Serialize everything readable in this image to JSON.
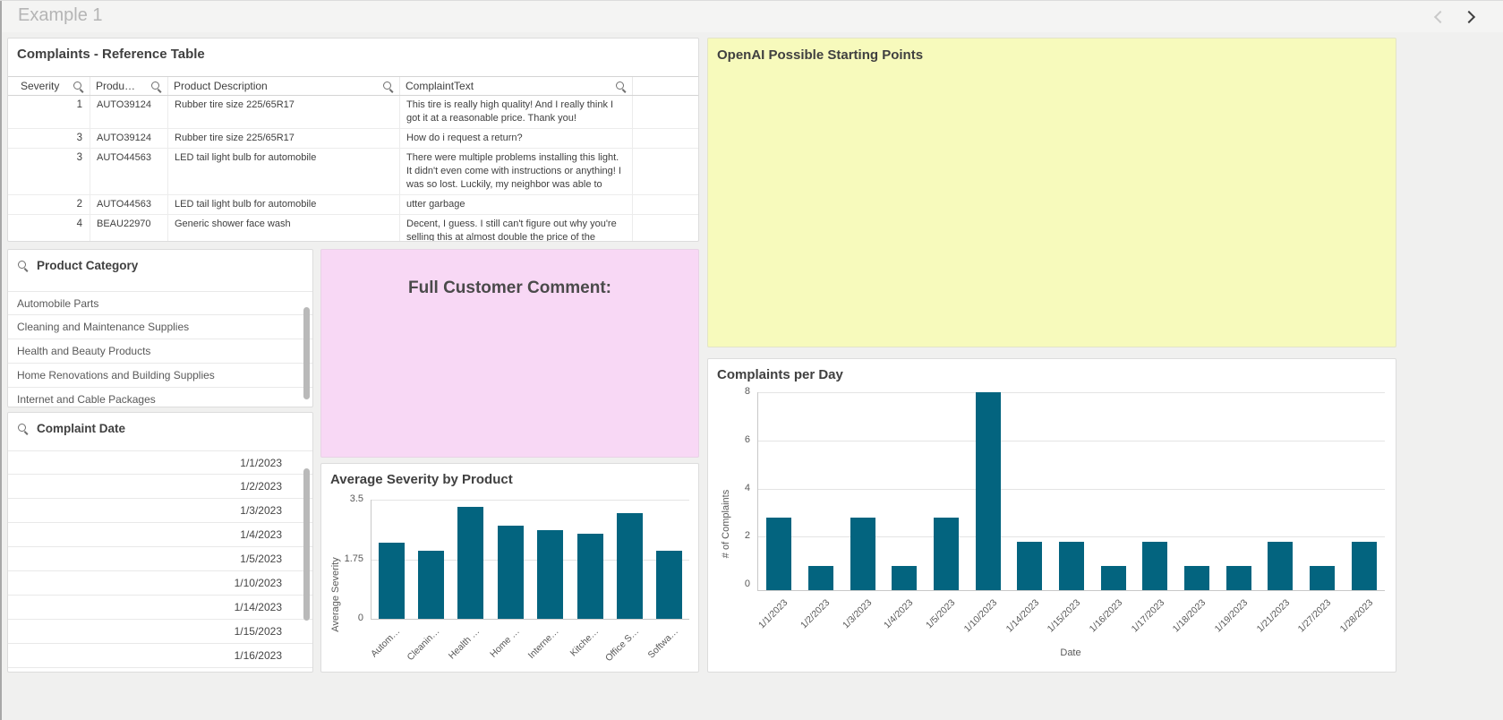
{
  "topbar": {
    "title": "Example 1"
  },
  "icons": {
    "search": "magnifier",
    "nav_prev": "chevron-left",
    "nav_next": "chevron-right"
  },
  "reference_table": {
    "title": "Complaints - Reference Table",
    "columns": [
      "Severity",
      "Produ…",
      "Product Description",
      "ComplaintText"
    ],
    "rows": [
      [
        "1",
        "AUTO39124",
        "Rubber tire size 225/65R17",
        "This tire is really high quality! And I really think I got it at a reasonable price. Thank you!"
      ],
      [
        "3",
        "AUTO39124",
        "Rubber tire size 225/65R17",
        "How do i request a return?"
      ],
      [
        "3",
        "AUTO44563",
        "LED tail light bulb for automobile",
        "There were multiple problems installing this light. It didn't even come with instructions or anything! I was so lost. Luckily, my neighbor was able to"
      ],
      [
        "2",
        "AUTO44563",
        "LED tail light bulb for automobile",
        "utter garbage"
      ],
      [
        "4",
        "BEAU22970",
        "Generic shower face wash",
        "Decent, I guess. I still can't figure out why you're selling this at almost double the price of the"
      ]
    ]
  },
  "filters": {
    "product_category": {
      "title": "Product Category",
      "items": [
        "Automobile Parts",
        "Cleaning and Maintenance Supplies",
        "Health and Beauty Products",
        "Home Renovations and Building Supplies",
        "Internet and Cable Packages"
      ]
    },
    "complaint_date": {
      "title": "Complaint Date",
      "items": [
        "1/1/2023",
        "1/2/2023",
        "1/3/2023",
        "1/4/2023",
        "1/5/2023",
        "1/10/2023",
        "1/14/2023",
        "1/15/2023",
        "1/16/2023"
      ]
    }
  },
  "panels": {
    "openai": {
      "title": "OpenAI Possible Starting Points",
      "bg_color": "#f7fabc"
    },
    "full_comment": {
      "title": "Full Customer Comment:",
      "bg_color": "#f8d8f5"
    }
  },
  "chart_data": [
    {
      "type": "bar",
      "title": "Average Severity by Product",
      "categories": [
        "Autom…",
        "Cleanin…",
        "Health …",
        "Home …",
        "Interne…",
        "Kitche…",
        "Office S…",
        "Softwa…"
      ],
      "values": [
        2.25,
        2.0,
        3.3,
        2.75,
        2.6,
        2.5,
        3.1,
        2.0
      ],
      "xlabel": "",
      "ylabel": "Average Severity",
      "yticks": [
        0,
        1.75,
        3.5
      ],
      "ylim": [
        0,
        3.5
      ],
      "bar_color": "#03647f",
      "grid": true,
      "legend": "none"
    },
    {
      "type": "bar",
      "title": "Complaints per Day",
      "categories": [
        "1/1/2023",
        "1/2/2023",
        "1/3/2023",
        "1/4/2023",
        "1/5/2023",
        "1/10/2023",
        "1/14/2023",
        "1/15/2023",
        "1/16/2023",
        "1/17/2023",
        "1/18/2023",
        "1/19/2023",
        "1/21/2023",
        "1/27/2023",
        "1/28/2023"
      ],
      "values": [
        3,
        1,
        3,
        1,
        3,
        8,
        2,
        2,
        1,
        2,
        1,
        1,
        2,
        1,
        2
      ],
      "xlabel": "Date",
      "ylabel": "# of Complaints",
      "yticks": [
        0,
        2,
        4,
        6,
        8
      ],
      "ylim": [
        0,
        8
      ],
      "bar_color": "#03647f",
      "grid": true,
      "legend": "none"
    }
  ]
}
